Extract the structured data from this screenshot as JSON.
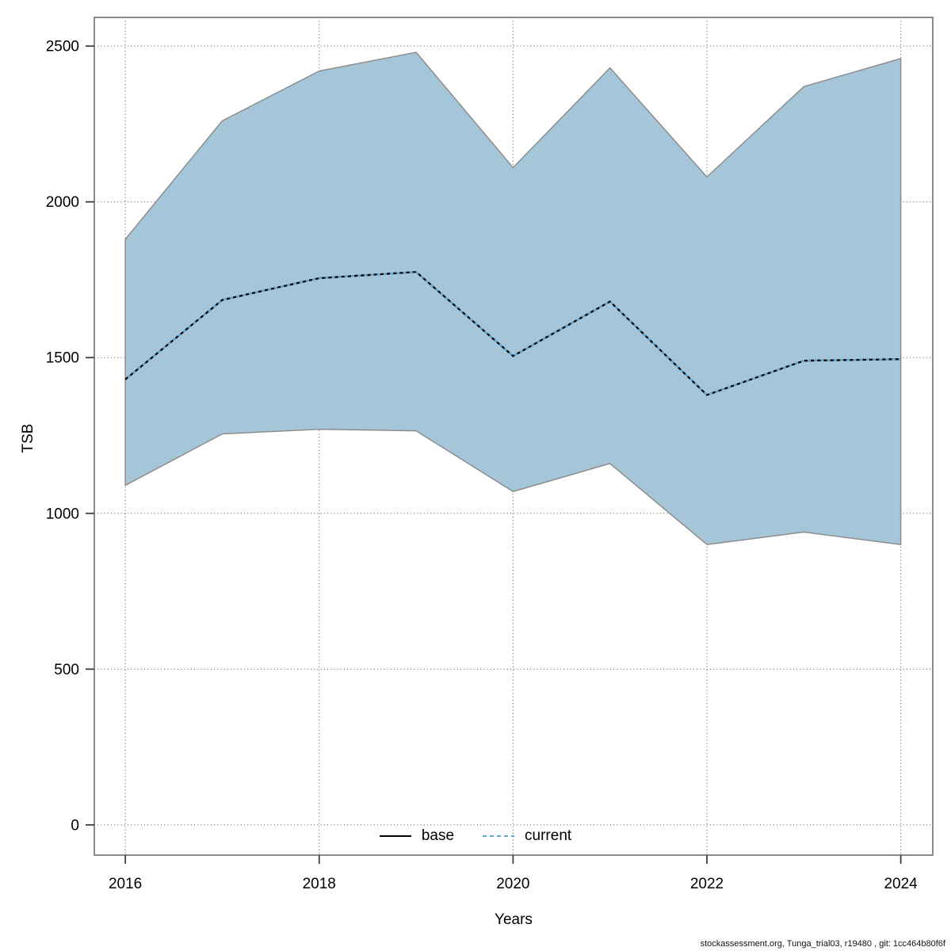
{
  "footer": {
    "text": "stockassessment.org, Tunga_trial03, r19480 , git: 1cc464b80f6f"
  },
  "chart_data": {
    "type": "area",
    "title": "",
    "xlabel": "Years",
    "ylabel": "TSB",
    "x": [
      2016,
      2017,
      2018,
      2019,
      2020,
      2021,
      2022,
      2023,
      2024
    ],
    "xticks": [
      2016,
      2018,
      2020,
      2022,
      2024
    ],
    "yticks": [
      0,
      500,
      1000,
      1500,
      2000,
      2500
    ],
    "xlim": [
      2015.68,
      2024.33
    ],
    "ylim": [
      -97,
      2592
    ],
    "grid": "dotted",
    "legend_position": "bottom-center",
    "band": {
      "label": "confidence-interval",
      "fill": "#A5C6D8",
      "edge": "#8D8D8D",
      "upper": [
        1880,
        2260,
        2420,
        2480,
        2110,
        2430,
        2080,
        2370,
        2460
      ],
      "lower": [
        1090,
        1255,
        1270,
        1265,
        1070,
        1160,
        900,
        940,
        900
      ]
    },
    "series": [
      {
        "name": "base",
        "line": "solid",
        "color": "#000000",
        "values": [
          1430,
          1685,
          1755,
          1775,
          1505,
          1680,
          1380,
          1490,
          1495
        ]
      },
      {
        "name": "current",
        "line": "dotted",
        "color": "#61A9D4",
        "values": [
          1430,
          1685,
          1755,
          1775,
          1505,
          1680,
          1380,
          1490,
          1495
        ]
      }
    ]
  }
}
